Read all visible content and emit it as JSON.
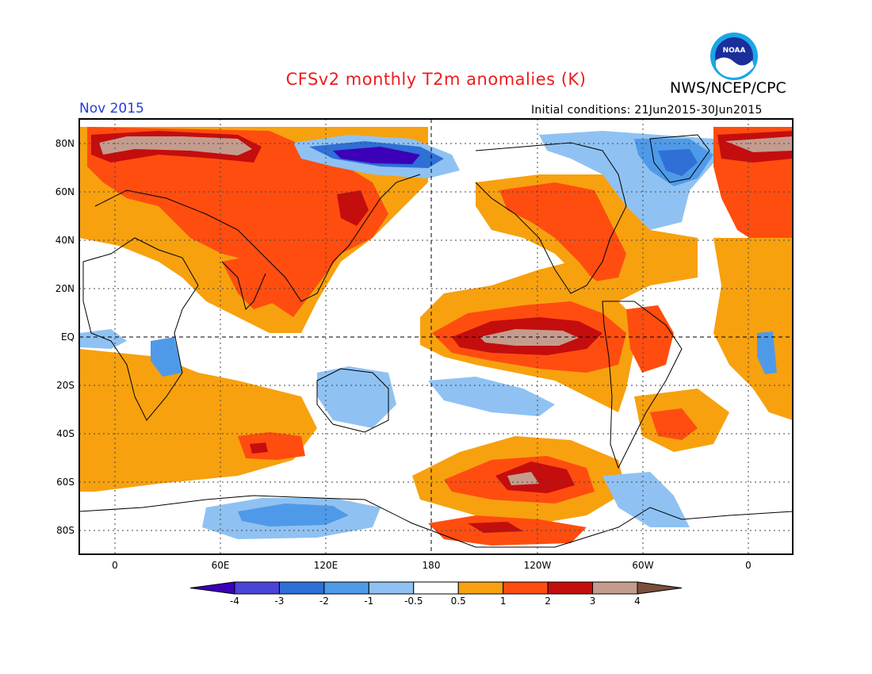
{
  "header": {
    "title": "CFSv2 monthly T2m anomalies (K)",
    "title_color": "#ee1c1c",
    "month": "Nov 2015",
    "month_color": "#1f3fd6",
    "org": "NWS/NCEP/CPC",
    "init": "Initial conditions: 21Jun2015-30Jun2015",
    "logo_text": "NOAA"
  },
  "axes": {
    "lat_labels": [
      "80N",
      "60N",
      "40N",
      "20N",
      "EQ",
      "20S",
      "40S",
      "60S",
      "80S"
    ],
    "lon_labels": [
      "0",
      "60E",
      "120E",
      "180",
      "120W",
      "60W",
      "0"
    ]
  },
  "colorbar": {
    "labels": [
      "-4",
      "-3",
      "-2",
      "-1",
      "-0.5",
      "0.5",
      "1",
      "2",
      "3",
      "4"
    ],
    "colors": [
      "#3b00b8",
      "#4b44d8",
      "#2f6fd6",
      "#4f9ae8",
      "#8fc2f2",
      "#ffffff",
      "#f7a10f",
      "#ff4d10",
      "#c40d0d",
      "#c49c8e",
      "#7a4f3c"
    ]
  },
  "field_colors": {
    "warm_light": "#f7a10f",
    "warm": "#ff4d10",
    "warm_strong": "#c40d0d",
    "warm_extreme": "#c49c8e",
    "cold_light": "#8fc2f2",
    "cold": "#4f9ae8",
    "cold_strong": "#2f6fd6",
    "cold_extreme": "#3b00b8"
  }
}
